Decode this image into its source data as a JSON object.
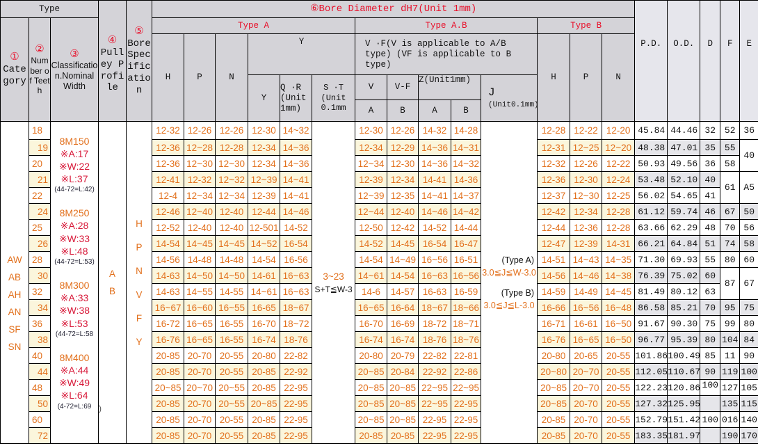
{
  "header": {
    "type": "Type",
    "category": {
      "num": "①",
      "label": "Category"
    },
    "teeth": {
      "num": "②",
      "label": "Number of Teeth"
    },
    "classification": {
      "num": "③",
      "label": "Classification.Nominal Width"
    },
    "pulley": {
      "num": "④",
      "label": "Pulley Profile"
    },
    "bore_spec": {
      "num": "⑤",
      "label": "Bore Specification"
    },
    "bore_diameter": "⑥Bore Diameter dH7(Unit 1mm)",
    "type_a": "Type A",
    "type_ab": "Type A.B",
    "type_b": "Type  B",
    "h": "H",
    "p": "P",
    "n": "N",
    "y_group": "Y",
    "y": "Y",
    "qr": "Q ·R (Unit 1mm)",
    "st": "S ·T (Unit 0.1mm",
    "vf_group": "V  ·F(V is applicable to A/B type) (VF is applicable to B type)",
    "v": "V",
    "v_f": "V-F",
    "z": "Z(Unit1mm)",
    "j": "J",
    "j_unit": "(Unit0.1mm)",
    "a": "A",
    "b": "B",
    "pd": "P.D.",
    "od": "O.D.",
    "d": "D",
    "f": "F",
    "e": "E"
  },
  "categories": [
    "AW",
    "AB",
    "AH",
    "AN",
    "SF",
    "SN"
  ],
  "classifications": [
    {
      "name": "8M150",
      "a": "※A:17",
      "w": "※W:22",
      "l": "※L:37",
      "note": "(44-72=L:42)"
    },
    {
      "name": "8M250",
      "a": "※A:28",
      "w": "※W:33",
      "l": "※L:48",
      "note": "(44-72=L:53)"
    },
    {
      "name": "8M300",
      "a": "※A:33",
      "w": "※W:38",
      "l": "※L:53",
      "note": "(44-72=L:58"
    },
    {
      "name": "8M400",
      "a": "※A:44",
      "w": "※W:49",
      "l": "※L:64",
      "note": "(4-72=L:69"
    }
  ],
  "pulley_profiles": [
    "A",
    "B"
  ],
  "pulley_stray": ")",
  "bore_specs": [
    "H",
    "P",
    "N",
    "V",
    "F",
    "Y"
  ],
  "st_value": {
    "range": "3~23",
    "rule": "S+T≦W-3"
  },
  "j_value": {
    "type_a": "(Type A)",
    "rule_a": "3.0≦J≦W-3.0",
    "type_b": "(Type B)",
    "rule_b": "3.0≦J≦L-3.0"
  },
  "rows": [
    {
      "teeth": "18",
      "ah": "12-32",
      "ap": "12-26",
      "an": "12-26",
      "y": "12-30",
      "qr": "14~32",
      "v": "12-30",
      "vf": "12-26",
      "za": "14-32",
      "zb": "14-28",
      "bh": "12-28",
      "bp": "12-22",
      "bn": "12-20",
      "pd": "45.84",
      "od": "44.46",
      "d": "32",
      "f": "52",
      "e": "36"
    },
    {
      "teeth": "19",
      "ah": "12-36",
      "ap": "12~28",
      "an": "12-28",
      "y": "12-34",
      "qr": "14~36",
      "v": "12-34",
      "vf": "12-29",
      "za": "14~36",
      "zb": "14~31",
      "bh": "12-31",
      "bp": "12~25",
      "bn": "12~20",
      "pd": "48.38",
      "od": "47.01",
      "d": "35",
      "f": "55",
      "e": "40"
    },
    {
      "teeth": "20",
      "ah": "12-36",
      "ap": "12~30",
      "an": "12~30",
      "y": "12-34",
      "qr": "14~36",
      "v": "12~34",
      "vf": "12-30",
      "za": "14~36",
      "zb": "14~32",
      "bh": "12-32",
      "bp": "12-26",
      "bn": "12-22",
      "pd": "50.93",
      "od": "49.56",
      "d": "36",
      "f": "58",
      "e": ""
    },
    {
      "teeth": "21",
      "ah": "12-41",
      "ap": "12-32",
      "an": "12~32",
      "y": "12~39",
      "qr": "14~41",
      "v": "12-39",
      "vf": "12-34",
      "za": "14-41",
      "zb": "14-36",
      "bh": "12-36",
      "bp": "12-30",
      "bn": "12-24",
      "pd": "53.48",
      "od": "52.10",
      "d": "40",
      "f": "61",
      "e": "A5"
    },
    {
      "teeth": "22",
      "ah": "12-4",
      "ap": "12~34",
      "an": "12~34",
      "y": "12-39",
      "qr": "14~41",
      "v": "12~39",
      "vf": "12-35",
      "za": "14~41",
      "zb": "14~37",
      "bh": "12-37",
      "bp": "12~30",
      "bn": "12-25",
      "pd": "56.02",
      "od": "54.65",
      "d": "41",
      "f": "",
      "e": ""
    },
    {
      "teeth": "24",
      "ah": "12-46",
      "ap": "12~40",
      "an": "12-40",
      "y": "12-44",
      "qr": "14~46",
      "v": "12~44",
      "vf": "12-40",
      "za": "14~46",
      "zb": "14~42",
      "bh": "12-42",
      "bp": "12-34",
      "bn": "12-28",
      "pd": "61.12",
      "od": "59.74",
      "d": "46",
      "f": "67",
      "e": "50"
    },
    {
      "teeth": "25",
      "ah": "12-52",
      "ap": "12-40",
      "an": "12-40",
      "y": "12-501",
      "qr": "14-52",
      "v": "12-50",
      "vf": "12-42",
      "za": "14-52",
      "zb": "14-44",
      "bh": "12-44",
      "bp": "12-36",
      "bn": "12-28",
      "pd": "63.66",
      "od": "62.29",
      "d": "48",
      "f": "70",
      "e": "56"
    },
    {
      "teeth": "26",
      "ah": "14-54",
      "ap": "14~45",
      "an": "14~45",
      "y": "14~52",
      "qr": "16-54",
      "v": "14-52",
      "vf": "14-45",
      "za": "16-54",
      "zb": "16-47",
      "bh": "12-47",
      "bp": "12-39",
      "bn": "14-31",
      "pd": "66.21",
      "od": "64.84",
      "d": "51",
      "f": "74",
      "e": "58"
    },
    {
      "teeth": "28",
      "ah": "14-56",
      "ap": "14-48",
      "an": "14-48",
      "y": "14-54",
      "qr": "16-56",
      "v": "14-54",
      "vf": "14~49",
      "za": "16~56",
      "zb": "16-51",
      "bh": "14-51",
      "bp": "14~43",
      "bn": "14~35",
      "pd": "71.30",
      "od": "69.93",
      "d": "55",
      "f": "80",
      "e": "60"
    },
    {
      "teeth": "30",
      "ah": "14-63",
      "ap": "14~50",
      "an": "14~50",
      "y": "14-61",
      "qr": "16~63",
      "v": "14~61",
      "vf": "14-54",
      "za": "16~63",
      "zb": "16~56",
      "bh": "14-56",
      "bp": "14~46",
      "bn": "14~38",
      "pd": "76.39",
      "od": "75.02",
      "d": "60",
      "f": "87",
      "e": "67"
    },
    {
      "teeth": "32",
      "ah": "14-63",
      "ap": "14~55",
      "an": "14-55",
      "y": "14~61",
      "qr": "16~63",
      "v": "14-6",
      "vf": "14-57",
      "za": "16-63",
      "zb": "16-59",
      "bh": "14-59",
      "bp": "14-49",
      "bn": "14~45",
      "pd": "81.49",
      "od": "80.12",
      "d": "63",
      "f": "",
      "e": ""
    },
    {
      "teeth": "34",
      "ah": "16~67",
      "ap": "16~60",
      "an": "16~55",
      "y": "16-65",
      "qr": "18~67",
      "v": "16~65",
      "vf": "16-64",
      "za": "18~67",
      "zb": "18~66",
      "bh": "16-66",
      "bp": "16~56",
      "bn": "16~48",
      "pd": "86.58",
      "od": "85.21",
      "d": "70",
      "f": "95",
      "e": "75"
    },
    {
      "teeth": "36",
      "ah": "16-72",
      "ap": "16~65",
      "an": "16-55",
      "y": "16-70",
      "qr": "18~72",
      "v": "16-70",
      "vf": "16-69",
      "za": "18-72",
      "zb": "18~71",
      "bh": "16-71",
      "bp": "16-61",
      "bn": "16~50",
      "pd": "91.67",
      "od": "90.30",
      "d": "75",
      "f": "99",
      "e": "80"
    },
    {
      "teeth": "38",
      "ah": "16-76",
      "ap": "16~65",
      "an": "16-55",
      "y": "16-74",
      "qr": "18-76",
      "v": "16-74",
      "vf": "16-74",
      "za": "18-76",
      "zb": "18~76",
      "bh": "16-76",
      "bp": "16~65",
      "bn": "16~50",
      "pd": "96.77",
      "od": "95.39",
      "d": "80",
      "f": "104",
      "e": "84"
    },
    {
      "teeth": "40",
      "ah": "20-85",
      "ap": "20-70",
      "an": "20-55",
      "y": "20-80",
      "qr": "22-82",
      "v": "20-80",
      "vf": "20-79",
      "za": "22-82",
      "zb": "22-81",
      "bh": "20-80",
      "bp": "20-65",
      "bn": "20-55",
      "pd": "101.86",
      "od": "100.49",
      "d": "85",
      "f": "11",
      "e": "90"
    },
    {
      "teeth": "44",
      "ah": "20-85",
      "ap": "20-70",
      "an": "20-55",
      "y": "20-85",
      "qr": "22-92",
      "v": "20~85",
      "vf": "20-84",
      "za": "22-92",
      "zb": "22-86",
      "bh": "20~80",
      "bp": "20~70",
      "bn": "20-55",
      "pd": "112.05",
      "od": "110.67",
      "d": "90",
      "f": "119",
      "e": "100"
    },
    {
      "teeth": "48",
      "ah": "20~85",
      "ap": "20~70",
      "an": "20~55",
      "y": "20-85",
      "qr": "22-95",
      "v": "20~85",
      "vf": "20~85",
      "za": "22~95",
      "zb": "22~95",
      "bh": "20~85",
      "bp": "20~70",
      "bn": "20-55",
      "pd": "122.23",
      "od": "120.86",
      "d": "100",
      "f": "127",
      "e": "105"
    },
    {
      "teeth": "50",
      "ah": "20-85",
      "ap": "20-70",
      "an": "20~55",
      "y": "20~85",
      "qr": "22-95",
      "v": "20~85",
      "vf": "20~85",
      "za": "22~95",
      "zb": "22-95",
      "bh": "20~85",
      "bp": "20-70",
      "bn": "20-55",
      "pd": "127.32",
      "od": "125.95",
      "d": "",
      "f": "135",
      "e": "115"
    },
    {
      "teeth": "60",
      "ah": "20-85",
      "ap": "20-70",
      "an": "20-55",
      "y": "20-85",
      "qr": "22-95",
      "v": "20~85",
      "vf": "20~85",
      "za": "22-95",
      "zb": "22-95",
      "bh": "20-85",
      "bp": "20-70",
      "bn": "20-55",
      "pd": "152.79",
      "od": "151.42",
      "d": "100",
      "f": "016",
      "e": "140"
    },
    {
      "teeth": "72",
      "ah": "20-85",
      "ap": "20-70",
      "an": "20-55",
      "y": "20-85",
      "qr": "22-95",
      "v": "20-85",
      "vf": "20-85",
      "za": "22-95",
      "zb": "22-95",
      "bh": "20-85",
      "bp": "20-70",
      "bn": "20-55",
      "pd": "183.35",
      "od": "181.97",
      "d": "",
      "f": "190",
      "e": "170"
    }
  ],
  "colors": {
    "value_orange": "#e2701c",
    "header_red": "#e8102a",
    "row_shade": "#fbf6dc",
    "num_shade": "#e6e6ea",
    "header_bg": "#d4d3d8"
  }
}
